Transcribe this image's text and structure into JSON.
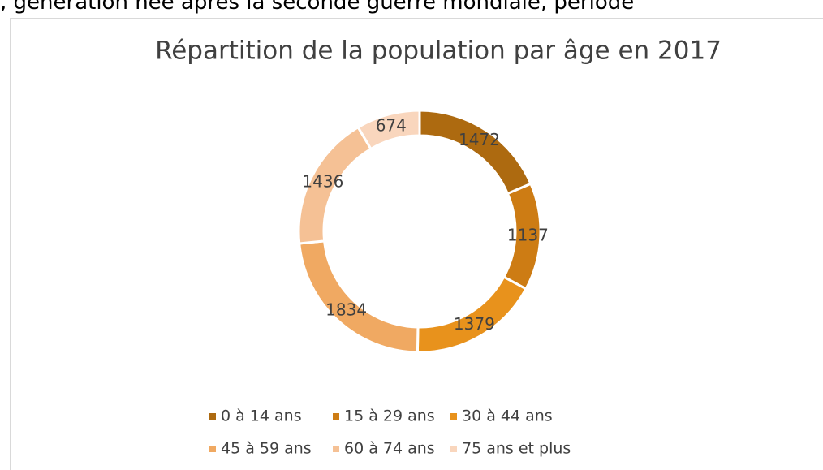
{
  "header_text": ", génération née après la seconde guerre mondiale, période",
  "chart_data": {
    "type": "donut",
    "title": "Répartition de la population par âge en 2017",
    "categories": [
      "0 à 14 ans",
      "15 à 29 ans",
      "30 à 44 ans",
      "45 à 59 ans",
      "60 à 74 ans",
      "75 ans et plus"
    ],
    "values": [
      1472,
      1137,
      1379,
      1834,
      1436,
      674
    ],
    "colors": [
      "#ad6a10",
      "#cd7c14",
      "#e8921c",
      "#f0a962",
      "#f5c195",
      "#f9d6bd"
    ],
    "legend": "bottom"
  }
}
